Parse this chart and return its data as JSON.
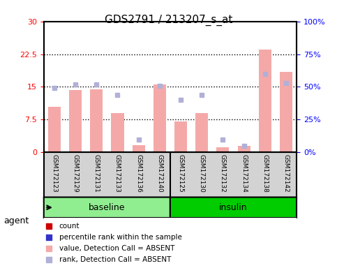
{
  "title": "GDS2791 / 213207_s_at",
  "samples": [
    "GSM172123",
    "GSM172129",
    "GSM172131",
    "GSM172133",
    "GSM172136",
    "GSM172140",
    "GSM172125",
    "GSM172130",
    "GSM172132",
    "GSM172134",
    "GSM172138",
    "GSM172142"
  ],
  "groups": [
    "baseline",
    "baseline",
    "baseline",
    "baseline",
    "baseline",
    "baseline",
    "insulin",
    "insulin",
    "insulin",
    "insulin",
    "insulin",
    "insulin"
  ],
  "bar_values": [
    10.5,
    14.2,
    14.5,
    9.0,
    1.7,
    15.5,
    7.0,
    9.0,
    1.2,
    1.5,
    23.5,
    18.5
  ],
  "rank_dots": [
    49,
    52,
    52,
    44,
    10,
    51,
    40,
    44,
    10,
    5,
    60,
    53
  ],
  "ylim_left": [
    0,
    30
  ],
  "ylim_right": [
    0,
    100
  ],
  "yticks_left": [
    0,
    7.5,
    15,
    22.5,
    30
  ],
  "yticks_right": [
    0,
    25,
    50,
    75,
    100
  ],
  "ytick_labels_left": [
    "0",
    "7.5",
    "15",
    "22.5",
    "30"
  ],
  "ytick_labels_right": [
    "0%",
    "25%",
    "50%",
    "75%",
    "100%"
  ],
  "bar_color_absent": "#f4a9a8",
  "bar_color_present": "#f4a9a8",
  "rank_dot_color_absent": "#b0b0d8",
  "rank_dot_color_present": "#b0b0d8",
  "red_dot_color": "#cc0000",
  "blue_dot_color": "#3333cc",
  "baseline_label": "baseline",
  "insulin_label": "insulin",
  "agent_label": "agent",
  "legend_items": [
    {
      "label": "count",
      "color": "#cc0000",
      "marker": "s"
    },
    {
      "label": "percentile rank within the sample",
      "color": "#3333cc",
      "marker": "s"
    },
    {
      "label": "value, Detection Call = ABSENT",
      "color": "#f4a9a8",
      "marker": "s"
    },
    {
      "label": "rank, Detection Call = ABSENT",
      "color": "#b0b0d8",
      "marker": "s"
    }
  ],
  "dotted_lines": [
    7.5,
    15,
    22.5
  ],
  "group_colors": {
    "baseline": "#90ee90",
    "insulin": "#00cc00"
  },
  "axis_bg": "#d3d3d3",
  "plot_bg": "#ffffff"
}
